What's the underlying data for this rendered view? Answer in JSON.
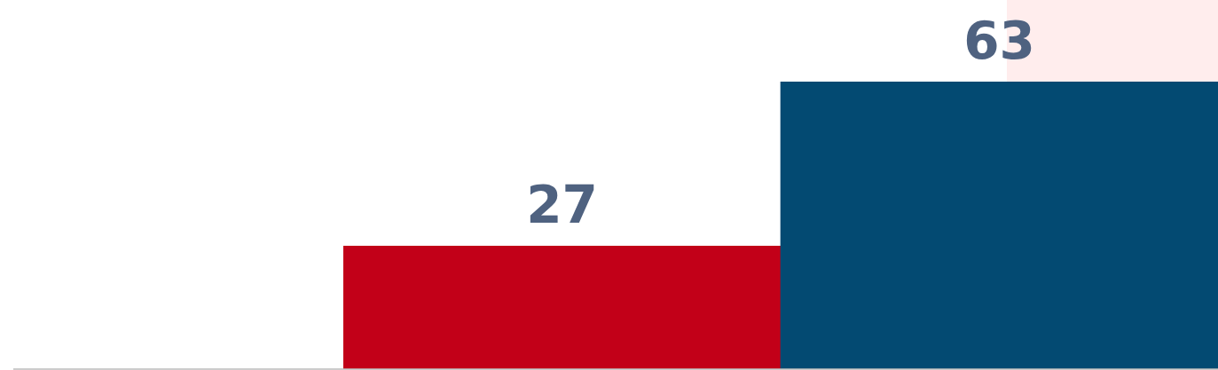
{
  "chart_data": {
    "type": "bar",
    "categories": [
      null,
      null
    ],
    "series": [
      {
        "colors": [
          "#c20018",
          "#034a72"
        ],
        "values": [
          27,
          63
        ]
      }
    ],
    "data_labels": true
  }
}
